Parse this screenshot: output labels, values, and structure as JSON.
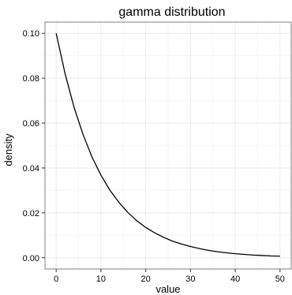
{
  "chart_data": {
    "type": "line",
    "title": "gamma distribution",
    "xlabel": "value",
    "ylabel": "density",
    "xlim": [
      -2.5,
      52.5
    ],
    "ylim": [
      -0.005,
      0.105
    ],
    "x_ticks": [
      0,
      10,
      20,
      30,
      40,
      50
    ],
    "x_tick_labels": [
      "0",
      "10",
      "20",
      "30",
      "40",
      "50"
    ],
    "y_ticks": [
      0.0,
      0.02,
      0.04,
      0.06,
      0.08,
      0.1
    ],
    "y_tick_labels": [
      "0.00",
      "0.02",
      "0.04",
      "0.06",
      "0.08",
      "0.10"
    ],
    "grid": true,
    "legend": "none",
    "colors": {
      "line": "#000000",
      "grid_major": "#ebebeb",
      "grid_minor": "#f5f5f5",
      "panel_border": "#7f7f7f"
    },
    "series": [
      {
        "x": [
          0,
          2,
          4,
          6,
          8,
          10,
          12,
          14,
          16,
          18,
          20,
          22,
          24,
          26,
          28,
          30,
          32,
          34,
          36,
          38,
          40,
          42,
          44,
          46,
          48,
          50
        ],
        "y": [
          0.1,
          0.0819,
          0.067,
          0.0549,
          0.0449,
          0.0368,
          0.0301,
          0.0247,
          0.0202,
          0.0165,
          0.0135,
          0.0111,
          0.0091,
          0.0074,
          0.0061,
          0.005,
          0.0041,
          0.0033,
          0.0027,
          0.0022,
          0.0018,
          0.0015,
          0.0012,
          0.001,
          0.0008,
          0.0007
        ]
      }
    ]
  }
}
